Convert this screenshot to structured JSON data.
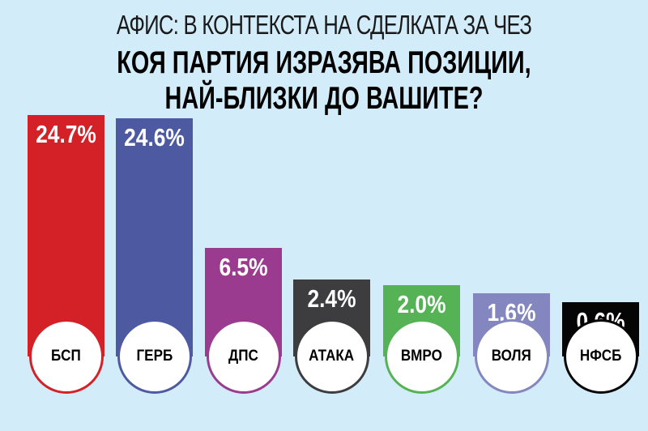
{
  "header": {
    "subtitle": "АФИС: В КОНТЕКСТА НА СДЕЛКАТА ЗА ЧЕЗ",
    "title_line1": "КОЯ ПАРТИЯ ИЗРАЗЯВА ПОЗИЦИИ,",
    "title_line2": "НАЙ-БЛИЗКИ ДО ВАШИТЕ?"
  },
  "bars": [
    {
      "label": "БСП",
      "value_text": "24.7%",
      "color": "#d42027"
    },
    {
      "label": "ГЕРБ",
      "value_text": "24.6%",
      "color": "#4d5aa1"
    },
    {
      "label": "ДПС",
      "value_text": "6.5%",
      "color": "#9b3b8f"
    },
    {
      "label": "АТАКА",
      "value_text": "2.4%",
      "color": "#3d3d3f"
    },
    {
      "label": "ВМРО",
      "value_text": "2.0%",
      "color": "#55b255"
    },
    {
      "label": "ВОЛЯ",
      "value_text": "1.6%",
      "color": "#8487bf"
    },
    {
      "label": "НФСБ",
      "value_text": "0.6%",
      "color": "#050505"
    }
  ],
  "chart_data": {
    "type": "bar",
    "title": "КОЯ ПАРТИЯ ИЗРАЗЯВА ПОЗИЦИИ, НАЙ-БЛИЗКИ ДО ВАШИТЕ?",
    "subtitle": "АФИС: В КОНТЕКСТА НА СДЕЛКАТА ЗА ЧЕЗ",
    "categories": [
      "БСП",
      "ГЕРБ",
      "ДПС",
      "АТАКА",
      "ВМРО",
      "ВОЛЯ",
      "НФСБ"
    ],
    "values": [
      24.7,
      24.6,
      6.5,
      2.4,
      2.0,
      1.6,
      0.6
    ],
    "unit": "%",
    "colors": [
      "#d42027",
      "#4d5aa1",
      "#9b3b8f",
      "#3d3d3f",
      "#55b255",
      "#8487bf",
      "#050505"
    ],
    "xlabel": "",
    "ylabel": "",
    "grid": false,
    "legend": "none"
  }
}
